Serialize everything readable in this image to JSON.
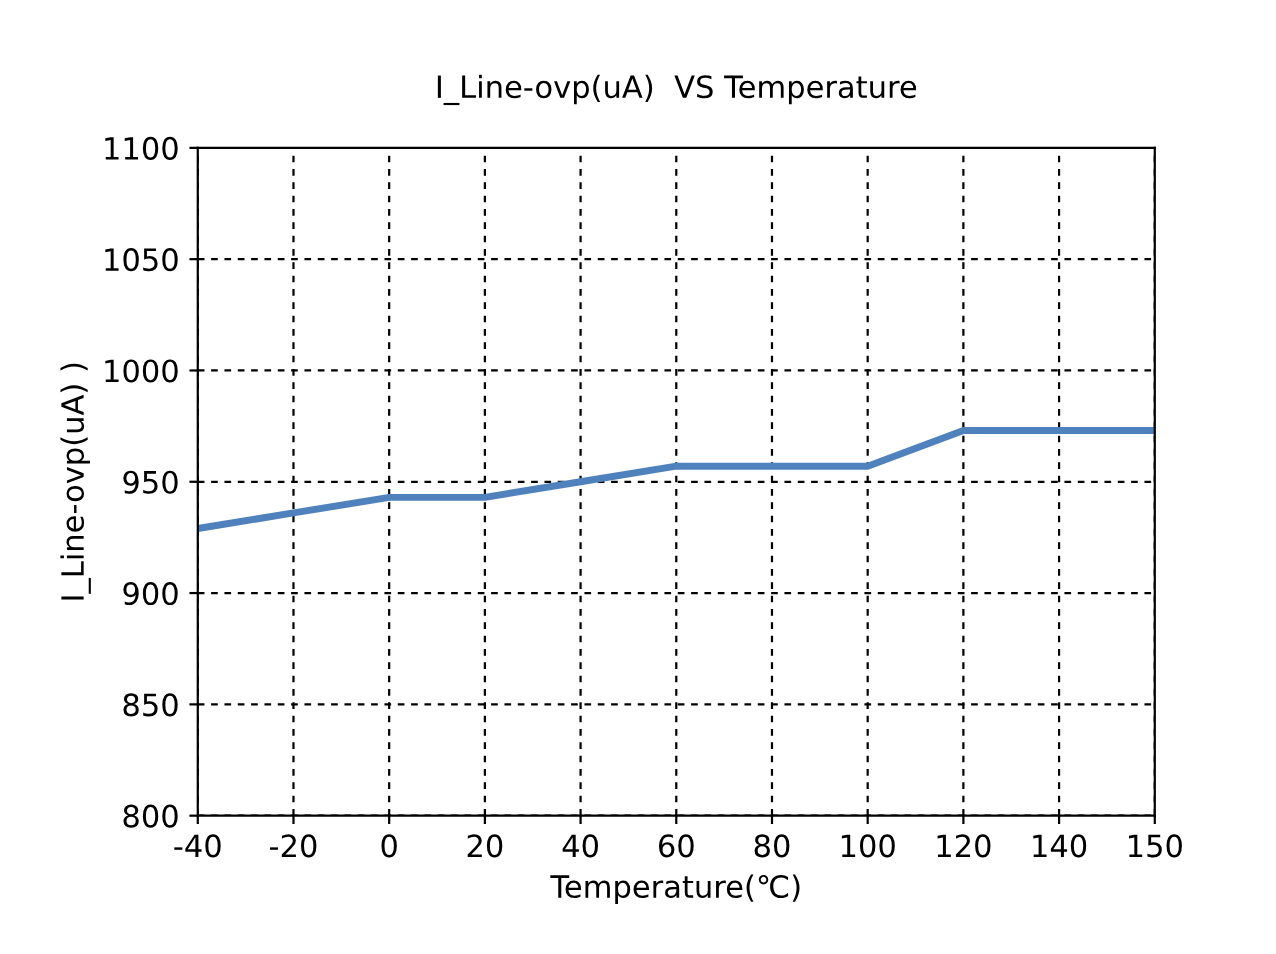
{
  "chart_data": {
    "type": "line",
    "title": "I_Line-ovp(uA)  VS Temperature",
    "xlabel": "Temperature(℃)",
    "ylabel": "I_Line-ovp(uA) )",
    "categories": [
      "-40",
      "-20",
      "0",
      "20",
      "40",
      "60",
      "80",
      "100",
      "120",
      "140",
      "150"
    ],
    "series": [
      {
        "color": "#4f81bd",
        "values": [
          929,
          936,
          943,
          943,
          950,
          957,
          957,
          957,
          973,
          973,
          973
        ]
      }
    ],
    "ylim": [
      800,
      1100
    ],
    "yticks": [
      800,
      850,
      900,
      950,
      1000,
      1050,
      1100
    ],
    "grid": true,
    "marker": "none",
    "line_style": "solid",
    "legend": false
  }
}
